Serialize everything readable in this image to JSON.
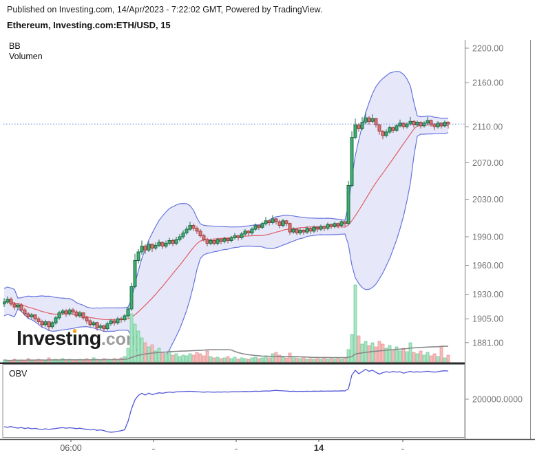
{
  "header": {
    "published_line": "Published on Investing.com, 14/Apr/2023 - 7:22:02 GMT, Powered by TradingView.",
    "instrument_title": "Ethereum, Investing.com:ETH/USD, 15"
  },
  "indicators": {
    "bb_label": "BB",
    "volume_label": "Volumen",
    "obv_label": "OBV"
  },
  "watermark": {
    "p1": "Invest",
    "p2": "i",
    "p3": "ng",
    "p4": ".com"
  },
  "chart_data": {
    "type": "candlestick",
    "symbol": "ETH/USD",
    "exchange": "Investing.com",
    "interval_minutes": 15,
    "scale": "log",
    "legend_position": "top-left",
    "grid": false,
    "price_axis": {
      "side": "right",
      "ticks": [
        {
          "value": 2200,
          "label": "2200.00"
        },
        {
          "value": 2160,
          "label": "2160.00"
        },
        {
          "value": 2110,
          "label": "2110.00"
        },
        {
          "value": 2070,
          "label": "2070.00"
        },
        {
          "value": 2030,
          "label": "2030.00"
        },
        {
          "value": 1990,
          "label": "1990.00"
        },
        {
          "value": 1960,
          "label": "1960.00"
        },
        {
          "value": 1930,
          "label": "1930.00"
        },
        {
          "value": 1905,
          "label": "1905.00"
        },
        {
          "value": 1881,
          "label": "1881.00"
        }
      ]
    },
    "obv_axis": {
      "ticks": [
        {
          "value": 200000,
          "label": "200000.0000"
        }
      ]
    },
    "time_axis": {
      "ticks": [
        {
          "index": 19.4,
          "label": "06:00",
          "bold": false
        },
        {
          "index": 43.4,
          "label": "",
          "bold": false
        },
        {
          "index": 67.4,
          "label": "",
          "bold": false
        },
        {
          "index": 91.4,
          "label": "14",
          "bold": true
        },
        {
          "index": 115.8,
          "label": "",
          "bold": false
        }
      ]
    },
    "last_price": 2113,
    "bollinger": {
      "window": 20,
      "mult": 2
    },
    "volume_ma_window": 30,
    "candles": [
      [
        1920,
        1926,
        1917,
        1922
      ],
      [
        1922,
        1928,
        1920,
        1925
      ],
      [
        1925,
        1927,
        1918,
        1920
      ],
      [
        1920,
        1922,
        1914,
        1917
      ],
      [
        1917,
        1921,
        1915,
        1919
      ],
      [
        1919,
        1921,
        1912,
        1914
      ],
      [
        1914,
        1916,
        1908,
        1910
      ],
      [
        1910,
        1912,
        1905,
        1907
      ],
      [
        1907,
        1911,
        1905,
        1909
      ],
      [
        1909,
        1910,
        1903,
        1905
      ],
      [
        1905,
        1907,
        1900,
        1902
      ],
      [
        1902,
        1904,
        1896,
        1899
      ],
      [
        1899,
        1904,
        1897,
        1902
      ],
      [
        1902,
        1903,
        1893,
        1897
      ],
      [
        1897,
        1903,
        1895,
        1901
      ],
      [
        1901,
        1908,
        1899,
        1906
      ],
      [
        1906,
        1913,
        1904,
        1911
      ],
      [
        1911,
        1915,
        1909,
        1913
      ],
      [
        1913,
        1915,
        1907,
        1910
      ],
      [
        1910,
        1916,
        1908,
        1914
      ],
      [
        1914,
        1916,
        1909,
        1912
      ],
      [
        1912,
        1914,
        1906,
        1908
      ],
      [
        1908,
        1913,
        1906,
        1911
      ],
      [
        1911,
        1912,
        1904,
        1906
      ],
      [
        1906,
        1908,
        1900,
        1903
      ],
      [
        1903,
        1905,
        1897,
        1899
      ],
      [
        1899,
        1903,
        1897,
        1901
      ],
      [
        1901,
        1902,
        1893,
        1896
      ],
      [
        1896,
        1900,
        1894,
        1898
      ],
      [
        1898,
        1899,
        1892,
        1895
      ],
      [
        1895,
        1902,
        1893,
        1900
      ],
      [
        1900,
        1905,
        1898,
        1903
      ],
      [
        1903,
        1905,
        1898,
        1901
      ],
      [
        1901,
        1907,
        1899,
        1905
      ],
      [
        1905,
        1907,
        1901,
        1904
      ],
      [
        1904,
        1910,
        1902,
        1908
      ],
      [
        1908,
        1917,
        1906,
        1915
      ],
      [
        1915,
        1942,
        1913,
        1938
      ],
      [
        1938,
        1972,
        1936,
        1965
      ],
      [
        1965,
        1977,
        1962,
        1974
      ],
      [
        1974,
        1986,
        1971,
        1980
      ],
      [
        1980,
        1982,
        1972,
        1976
      ],
      [
        1976,
        1985,
        1974,
        1982
      ],
      [
        1982,
        1983,
        1974,
        1978
      ],
      [
        1978,
        1984,
        1976,
        1981
      ],
      [
        1981,
        1987,
        1979,
        1984
      ],
      [
        1984,
        1985,
        1977,
        1980
      ],
      [
        1980,
        1986,
        1978,
        1983
      ],
      [
        1983,
        1989,
        1981,
        1986
      ],
      [
        1986,
        1988,
        1980,
        1983
      ],
      [
        1983,
        1990,
        1981,
        1987
      ],
      [
        1987,
        1993,
        1985,
        1990
      ],
      [
        1990,
        1997,
        1988,
        1994
      ],
      [
        1994,
        2001,
        1992,
        1998
      ],
      [
        1998,
        2006,
        1996,
        2002
      ],
      [
        2002,
        2004,
        1996,
        1999
      ],
      [
        1999,
        2001,
        1993,
        1996
      ],
      [
        1996,
        1998,
        1989,
        1991
      ],
      [
        1991,
        1993,
        1985,
        1987
      ],
      [
        1987,
        1989,
        1980,
        1983
      ],
      [
        1983,
        1988,
        1981,
        1986
      ],
      [
        1986,
        1987,
        1981,
        1983
      ],
      [
        1983,
        1989,
        1981,
        1987
      ],
      [
        1987,
        1988,
        1982,
        1985
      ],
      [
        1985,
        1990,
        1983,
        1988
      ],
      [
        1988,
        1989,
        1983,
        1986
      ],
      [
        1986,
        1991,
        1984,
        1989
      ],
      [
        1989,
        1994,
        1987,
        1991
      ],
      [
        1991,
        1992,
        1986,
        1989
      ],
      [
        1989,
        1995,
        1987,
        1993
      ],
      [
        1993,
        1998,
        1991,
        1996
      ],
      [
        1996,
        1997,
        1991,
        1994
      ],
      [
        1994,
        2000,
        1992,
        1998
      ],
      [
        1998,
        2004,
        1996,
        2002
      ],
      [
        2002,
        2003,
        1997,
        2000
      ],
      [
        2000,
        2006,
        1998,
        2004
      ],
      [
        2004,
        2011,
        2002,
        2007
      ],
      [
        2007,
        2008,
        2002,
        2005
      ],
      [
        2005,
        2013,
        2003,
        2009
      ],
      [
        2009,
        2010,
        2003,
        2006
      ],
      [
        2006,
        2008,
        1999,
        2002
      ],
      [
        2002,
        2009,
        2000,
        2007
      ],
      [
        2007,
        2008,
        2001,
        2004
      ],
      [
        2004,
        2005,
        1992,
        1995
      ],
      [
        1995,
        2000,
        1993,
        1998
      ],
      [
        1998,
        1999,
        1992,
        1994
      ],
      [
        1994,
        1999,
        1992,
        1997
      ],
      [
        1997,
        1998,
        1992,
        1995
      ],
      [
        1995,
        2001,
        1993,
        1999
      ],
      [
        1999,
        2000,
        1993,
        1996
      ],
      [
        1996,
        2002,
        1994,
        2000
      ],
      [
        2000,
        2001,
        1995,
        1998
      ],
      [
        1998,
        2003,
        1996,
        2001
      ],
      [
        2001,
        2002,
        1996,
        1999
      ],
      [
        1999,
        2005,
        1997,
        2003
      ],
      [
        2003,
        2004,
        1998,
        2001
      ],
      [
        2001,
        2006,
        1999,
        2004
      ],
      [
        2004,
        2005,
        1999,
        2002
      ],
      [
        2002,
        2008,
        2000,
        2006
      ],
      [
        2006,
        2007,
        2001,
        2004
      ],
      [
        2004,
        2050,
        2003,
        2045
      ],
      [
        2045,
        2105,
        2043,
        2098
      ],
      [
        2098,
        2119,
        2096,
        2112
      ],
      [
        2112,
        2114,
        2104,
        2108
      ],
      [
        2108,
        2121,
        2106,
        2115
      ],
      [
        2115,
        2127,
        2113,
        2120
      ],
      [
        2120,
        2122,
        2112,
        2116
      ],
      [
        2116,
        2124,
        2114,
        2119
      ],
      [
        2119,
        2120,
        2109,
        2112
      ],
      [
        2112,
        2113,
        2101,
        2105
      ],
      [
        2105,
        2106,
        2096,
        2100
      ],
      [
        2100,
        2107,
        2098,
        2104
      ],
      [
        2104,
        2111,
        2102,
        2109
      ],
      [
        2109,
        2110,
        2103,
        2106
      ],
      [
        2106,
        2113,
        2104,
        2111
      ],
      [
        2111,
        2118,
        2109,
        2114
      ],
      [
        2114,
        2115,
        2107,
        2110
      ],
      [
        2110,
        2115,
        2108,
        2113
      ],
      [
        2113,
        2121,
        2111,
        2116
      ],
      [
        2116,
        2117,
        2109,
        2112
      ],
      [
        2112,
        2117,
        2110,
        2115
      ],
      [
        2115,
        2116,
        2108,
        2111
      ],
      [
        2111,
        2116,
        2109,
        2114
      ],
      [
        2114,
        2121,
        2112,
        2117
      ],
      [
        2117,
        2118,
        2110,
        2113
      ],
      [
        2113,
        2114,
        2106,
        2110
      ],
      [
        2110,
        2116,
        2108,
        2114
      ],
      [
        2114,
        2115,
        2108,
        2111
      ],
      [
        2111,
        2117,
        2109,
        2115
      ],
      [
        2115,
        2116,
        2108,
        2113
      ]
    ],
    "volumes": [
      3,
      2,
      2,
      4,
      2,
      3,
      2,
      5,
      2,
      3,
      4,
      3,
      2,
      6,
      3,
      4,
      3,
      5,
      3,
      4,
      3,
      2,
      4,
      2,
      5,
      3,
      6,
      4,
      3,
      5,
      4,
      3,
      5,
      4,
      6,
      8,
      20,
      70,
      55,
      45,
      35,
      28,
      22,
      25,
      16,
      20,
      14,
      12,
      16,
      10,
      12,
      8,
      10,
      9,
      12,
      10,
      14,
      12,
      9,
      16,
      8,
      6,
      7,
      5,
      6,
      8,
      5,
      7,
      4,
      6,
      5,
      4,
      6,
      7,
      5,
      6,
      9,
      6,
      12,
      14,
      10,
      7,
      6,
      13,
      8,
      6,
      5,
      6,
      4,
      5,
      4,
      5,
      4,
      6,
      4,
      5,
      4,
      5,
      4,
      6,
      18,
      40,
      112,
      38,
      26,
      30,
      24,
      28,
      22,
      30,
      26,
      20,
      24,
      18,
      22,
      16,
      20,
      15,
      28,
      14,
      12,
      16,
      10,
      14,
      9,
      12,
      8,
      22,
      6,
      10
    ],
    "obv_thousands": [
      160,
      159.2,
      160.3,
      158.8,
      158,
      158.8,
      157.4,
      158.3,
      157,
      157.6,
      156.6,
      156,
      157,
      156,
      156.8,
      157.4,
      158.2,
      158.6,
      157.9,
      158.5,
      158,
      157.2,
      157.8,
      156.8,
      156.2,
      155.4,
      156,
      154.8,
      155.4,
      154.4,
      152.6,
      152,
      152.4,
      153.4,
      154.2,
      155.6,
      168,
      186,
      199,
      205.5,
      208.5,
      206,
      208.8,
      206.6,
      208,
      209.3,
      208.6,
      209.6,
      210.4,
      209.8,
      210.6,
      210.9,
      211.1,
      211.3,
      211.5,
      211.2,
      210.9,
      210.5,
      210.2,
      210.6,
      210.4,
      210.2,
      210.5,
      210.3,
      210.6,
      210.4,
      210.7,
      210.9,
      210.7,
      211,
      211.2,
      211,
      211.3,
      211.6,
      211.4,
      211.7,
      212,
      211.8,
      212.4,
      212.8,
      212.4,
      212.1,
      211.9,
      211.3,
      211.6,
      211.2,
      211.5,
      211.3,
      211.6,
      211.4,
      211.7,
      211.5,
      211.8,
      211.6,
      211.9,
      211.7,
      212,
      211.8,
      212.2,
      212,
      215,
      235,
      242,
      237,
      240,
      243.5,
      240.5,
      242,
      239,
      236.5,
      238.5,
      240,
      239,
      240.2,
      239.4,
      239.8,
      237.8,
      239.2,
      240.3,
      239.3,
      239.8,
      239.4,
      240,
      240.6,
      239.8,
      239.3,
      240,
      240.8,
      241.3,
      240.9
    ],
    "colors": {
      "candle_up_fill": "#3fae74",
      "candle_up_stroke": "#1b6b44",
      "candle_down_fill": "#db7373",
      "candle_down_stroke": "#9e3f3f",
      "vol_up_fill": "#a9e6c4",
      "vol_up_stroke": "#6cc897",
      "vol_down_fill": "#f5bcbc",
      "vol_down_stroke": "#e79191",
      "bb_line": "#6673de",
      "bb_fill": "rgba(102,115,222,0.16)",
      "bb_mid": "#e05c63",
      "obv_line": "#5156d6",
      "last_price_line": "#5b7de0",
      "vol_ma": "#8a8a8a",
      "axis_line": "#8f8f8f",
      "pane_separator": "#2a2a2a",
      "axis_text": "#757575"
    }
  }
}
